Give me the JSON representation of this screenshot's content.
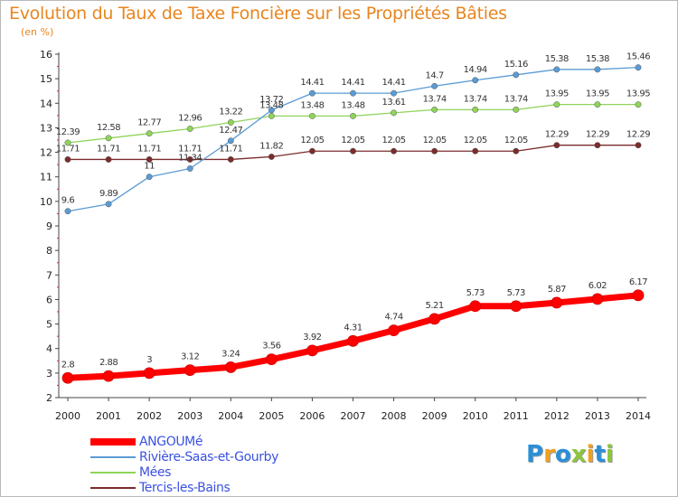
{
  "title": "Evolution du Taux de Taxe Foncière sur les Propriétés Bâties",
  "unit_label": "(en %)",
  "logo": {
    "text": "Proxiti",
    "letters": [
      {
        "ch": "P",
        "color": "#2a8fd8"
      },
      {
        "ch": "r",
        "color": "#f0a020"
      },
      {
        "ch": "o",
        "color": "#2a8fd8"
      },
      {
        "ch": "x",
        "color": "#8cc63f"
      },
      {
        "ch": "i",
        "color": "#f0a020"
      },
      {
        "ch": "t",
        "color": "#2a8fd8"
      },
      {
        "ch": "i",
        "color": "#8cc63f"
      }
    ]
  },
  "chart_data": {
    "type": "line",
    "title": "Evolution du Taux de Taxe Foncière sur les Propriétés Bâties",
    "ylabel": "(en %)",
    "xlabel": "",
    "x": [
      "2000",
      "2001",
      "2002",
      "2003",
      "2004",
      "2005",
      "2006",
      "2007",
      "2008",
      "2009",
      "2010",
      "2011",
      "2012",
      "2013",
      "2014"
    ],
    "ylim": [
      2,
      16
    ],
    "yticks": [
      2,
      3,
      4,
      5,
      6,
      7,
      8,
      9,
      10,
      11,
      12,
      13,
      14,
      15,
      16
    ],
    "grid": false,
    "legend_placement": "bottom-left",
    "series": [
      {
        "name": "ANGOUMé",
        "color": "#ff0000",
        "values": [
          2.8,
          2.88,
          3,
          3.12,
          3.24,
          3.56,
          3.92,
          4.31,
          4.74,
          5.21,
          5.73,
          5.73,
          5.87,
          6.02,
          6.17
        ],
        "labels": [
          "2.8",
          "2.88",
          "3",
          "3.12",
          "3.24",
          "3.56",
          "3.92",
          "4.31",
          "4.74",
          "5.21",
          "5.73",
          "5.73",
          "5.87",
          "6.02",
          "6.17"
        ]
      },
      {
        "name": "Rivière-Saas-et-Gourby",
        "color": "#5b9bd5",
        "values": [
          9.6,
          9.89,
          11,
          11.34,
          12.47,
          13.72,
          14.41,
          14.41,
          14.41,
          14.7,
          14.94,
          15.16,
          15.38,
          15.38,
          15.46
        ],
        "labels": [
          "9.6",
          "9.89",
          "11",
          "11.34",
          "12.47",
          "13.72",
          "14.41",
          "14.41",
          "14.41",
          "14.7",
          "14.94",
          "15.16",
          "15.38",
          "15.38",
          "15.46"
        ]
      },
      {
        "name": "Mées",
        "color": "#8fd45a",
        "values": [
          12.39,
          12.58,
          12.77,
          12.96,
          13.22,
          13.48,
          13.48,
          13.48,
          13.61,
          13.74,
          13.74,
          13.74,
          13.95,
          13.95,
          13.95
        ],
        "labels": [
          "12.39",
          "12.58",
          "12.77",
          "12.96",
          "13.22",
          "13.48",
          "13.48",
          "13.48",
          "13.61",
          "13.74",
          "13.74",
          "13.74",
          "13.95",
          "13.95",
          "13.95"
        ]
      },
      {
        "name": "Tercis-les-Bains",
        "color": "#7b2c2c",
        "values": [
          11.71,
          11.71,
          11.71,
          11.71,
          11.71,
          11.82,
          12.05,
          12.05,
          12.05,
          12.05,
          12.05,
          12.05,
          12.29,
          12.29,
          12.29
        ],
        "labels": [
          "11.71",
          "11.71",
          "11.71",
          "11.71",
          "11.71",
          "11.82",
          "12.05",
          "12.05",
          "12.05",
          "12.05",
          "12.05",
          "12.05",
          "12.29",
          "12.29",
          "12.29"
        ]
      }
    ]
  }
}
